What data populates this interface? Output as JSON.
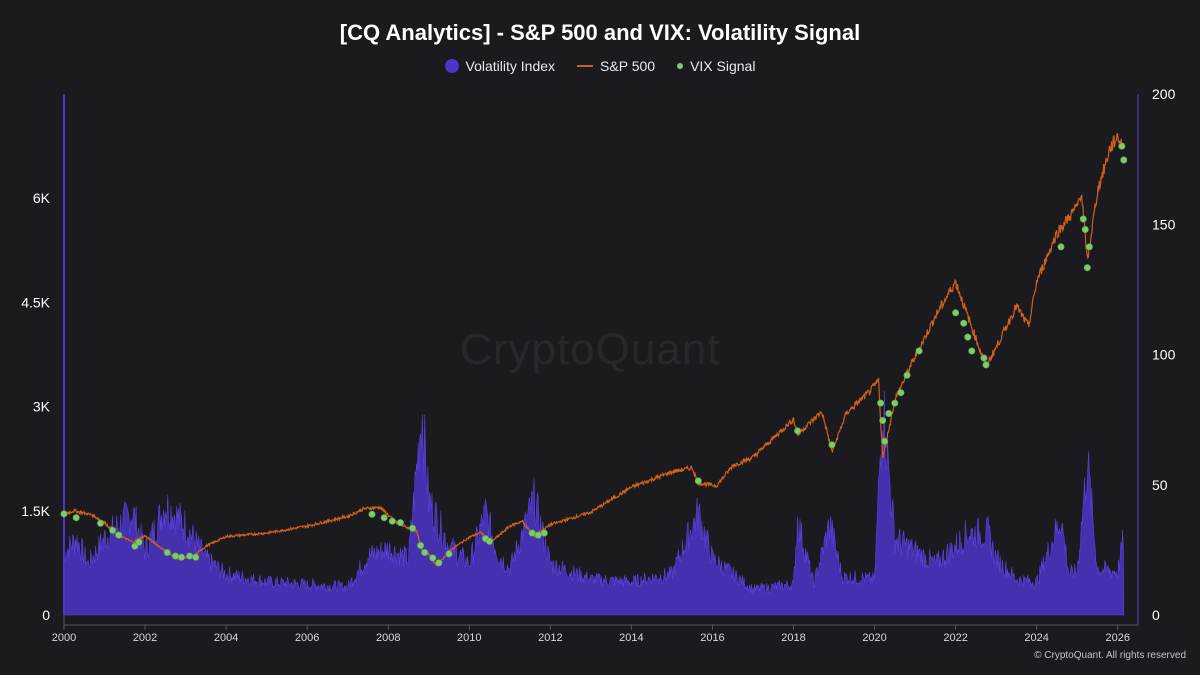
{
  "chart_data": {
    "type": "line",
    "title": "[CQ Analytics] - S&P 500 and VIX: Volatility Signal",
    "legend": [
      {
        "name": "Volatility Index",
        "kind": "area",
        "color": "#4c36c9"
      },
      {
        "name": "S&P 500",
        "kind": "line",
        "color": "#d1601c"
      },
      {
        "name": "VIX Signal",
        "kind": "scatter",
        "color": "#7ccc6a"
      }
    ],
    "x_range": [
      2000,
      2026.5
    ],
    "x_ticks": [
      "2000",
      "2002",
      "2004",
      "2006",
      "2008",
      "2010",
      "2012",
      "2014",
      "2016",
      "2018",
      "2020",
      "2022",
      "2024",
      "2026"
    ],
    "y_left": {
      "range": [
        0,
        7500
      ],
      "ticks": [
        0,
        1500,
        3000,
        4500,
        6000
      ],
      "tick_labels": [
        "0",
        "1.5K",
        "3K",
        "4.5K",
        "6K"
      ]
    },
    "y_right": {
      "range": [
        0,
        200
      ],
      "ticks": [
        0,
        50,
        100,
        150,
        200
      ],
      "tick_labels": [
        "0",
        "50",
        "100",
        "150",
        "200"
      ]
    },
    "series": [
      {
        "name": "S&P 500",
        "axis": "left",
        "points": [
          [
            2000.0,
            1455
          ],
          [
            2000.25,
            1500
          ],
          [
            2000.7,
            1440
          ],
          [
            2001.0,
            1330
          ],
          [
            2001.3,
            1160
          ],
          [
            2001.7,
            1050
          ],
          [
            2002.0,
            1140
          ],
          [
            2002.5,
            920
          ],
          [
            2002.8,
            800
          ],
          [
            2003.2,
            850
          ],
          [
            2003.5,
            990
          ],
          [
            2004.0,
            1130
          ],
          [
            2005.0,
            1180
          ],
          [
            2006.0,
            1280
          ],
          [
            2007.0,
            1420
          ],
          [
            2007.4,
            1530
          ],
          [
            2007.8,
            1550
          ],
          [
            2008.2,
            1330
          ],
          [
            2008.7,
            1200
          ],
          [
            2008.85,
            900
          ],
          [
            2009.0,
            880
          ],
          [
            2009.2,
            700
          ],
          [
            2009.5,
            920
          ],
          [
            2010.0,
            1120
          ],
          [
            2010.3,
            1190
          ],
          [
            2010.5,
            1030
          ],
          [
            2011.0,
            1280
          ],
          [
            2011.3,
            1350
          ],
          [
            2011.6,
            1130
          ],
          [
            2012.0,
            1300
          ],
          [
            2013.0,
            1480
          ],
          [
            2014.0,
            1840
          ],
          [
            2015.0,
            2060
          ],
          [
            2015.5,
            2120
          ],
          [
            2015.65,
            1900
          ],
          [
            2016.1,
            1860
          ],
          [
            2016.5,
            2150
          ],
          [
            2017.0,
            2270
          ],
          [
            2018.0,
            2820
          ],
          [
            2018.1,
            2600
          ],
          [
            2018.7,
            2930
          ],
          [
            2018.95,
            2350
          ],
          [
            2019.3,
            2900
          ],
          [
            2019.9,
            3230
          ],
          [
            2020.1,
            3380
          ],
          [
            2020.2,
            2240
          ],
          [
            2020.5,
            3100
          ],
          [
            2020.9,
            3600
          ],
          [
            2021.5,
            4300
          ],
          [
            2022.0,
            4800
          ],
          [
            2022.3,
            4300
          ],
          [
            2022.75,
            3580
          ],
          [
            2023.0,
            3850
          ],
          [
            2023.5,
            4450
          ],
          [
            2023.8,
            4150
          ],
          [
            2024.0,
            4800
          ],
          [
            2024.5,
            5500
          ],
          [
            2025.0,
            5880
          ],
          [
            2025.1,
            6100
          ],
          [
            2025.25,
            5100
          ],
          [
            2025.5,
            6100
          ],
          [
            2025.8,
            6700
          ],
          [
            2026.0,
            6900
          ],
          [
            2026.15,
            6700
          ]
        ]
      },
      {
        "name": "Volatility Index",
        "axis": "right",
        "points": [
          [
            2000.0,
            24
          ],
          [
            2000.3,
            30
          ],
          [
            2000.6,
            20
          ],
          [
            2001.0,
            30
          ],
          [
            2001.7,
            40
          ],
          [
            2002.0,
            25
          ],
          [
            2002.5,
            43
          ],
          [
            2002.7,
            40
          ],
          [
            2003.0,
            35
          ],
          [
            2003.5,
            22
          ],
          [
            2004.0,
            16
          ],
          [
            2005.0,
            13
          ],
          [
            2006.0,
            12
          ],
          [
            2007.0,
            11
          ],
          [
            2007.5,
            23
          ],
          [
            2008.0,
            26
          ],
          [
            2008.5,
            22
          ],
          [
            2008.83,
            80
          ],
          [
            2009.0,
            45
          ],
          [
            2009.5,
            27
          ],
          [
            2010.0,
            20
          ],
          [
            2010.4,
            40
          ],
          [
            2010.7,
            24
          ],
          [
            2011.0,
            18
          ],
          [
            2011.6,
            45
          ],
          [
            2012.0,
            20
          ],
          [
            2013.0,
            14
          ],
          [
            2014.0,
            13
          ],
          [
            2015.0,
            16
          ],
          [
            2015.65,
            40
          ],
          [
            2016.0,
            22
          ],
          [
            2017.0,
            10
          ],
          [
            2018.0,
            12
          ],
          [
            2018.1,
            37
          ],
          [
            2018.5,
            12
          ],
          [
            2018.9,
            36
          ],
          [
            2019.2,
            15
          ],
          [
            2020.0,
            14
          ],
          [
            2020.2,
            83
          ],
          [
            2020.5,
            30
          ],
          [
            2021.0,
            25
          ],
          [
            2021.5,
            20
          ],
          [
            2022.0,
            27
          ],
          [
            2022.3,
            32
          ],
          [
            2022.8,
            32
          ],
          [
            2023.0,
            22
          ],
          [
            2023.5,
            14
          ],
          [
            2024.0,
            13
          ],
          [
            2024.6,
            38
          ],
          [
            2024.8,
            16
          ],
          [
            2025.0,
            17
          ],
          [
            2025.25,
            60
          ],
          [
            2025.5,
            18
          ],
          [
            2026.0,
            17
          ],
          [
            2026.2,
            35
          ]
        ]
      },
      {
        "name": "VIX Signal",
        "axis": "left",
        "points": [
          [
            2000.0,
            1455
          ],
          [
            2000.3,
            1400
          ],
          [
            2000.9,
            1320
          ],
          [
            2001.2,
            1220
          ],
          [
            2001.35,
            1150
          ],
          [
            2001.75,
            990
          ],
          [
            2001.85,
            1050
          ],
          [
            2002.55,
            900
          ],
          [
            2002.75,
            850
          ],
          [
            2002.9,
            830
          ],
          [
            2003.1,
            850
          ],
          [
            2003.25,
            830
          ],
          [
            2007.6,
            1450
          ],
          [
            2007.9,
            1400
          ],
          [
            2008.1,
            1350
          ],
          [
            2008.3,
            1330
          ],
          [
            2008.6,
            1250
          ],
          [
            2008.8,
            1000
          ],
          [
            2008.9,
            900
          ],
          [
            2009.1,
            820
          ],
          [
            2009.25,
            750
          ],
          [
            2009.5,
            880
          ],
          [
            2010.4,
            1100
          ],
          [
            2010.5,
            1060
          ],
          [
            2011.55,
            1180
          ],
          [
            2011.7,
            1150
          ],
          [
            2011.85,
            1180
          ],
          [
            2015.65,
            1930
          ],
          [
            2018.1,
            2650
          ],
          [
            2018.95,
            2450
          ],
          [
            2020.15,
            3050
          ],
          [
            2020.2,
            2800
          ],
          [
            2020.25,
            2500
          ],
          [
            2020.35,
            2900
          ],
          [
            2020.5,
            3050
          ],
          [
            2020.65,
            3200
          ],
          [
            2020.8,
            3450
          ],
          [
            2021.1,
            3800
          ],
          [
            2022.0,
            4350
          ],
          [
            2022.2,
            4200
          ],
          [
            2022.3,
            4000
          ],
          [
            2022.4,
            3800
          ],
          [
            2022.7,
            3700
          ],
          [
            2022.75,
            3600
          ],
          [
            2024.6,
            5300
          ],
          [
            2025.15,
            5700
          ],
          [
            2025.2,
            5550
          ],
          [
            2025.25,
            5000
          ],
          [
            2025.3,
            5300
          ],
          [
            2026.1,
            6750
          ],
          [
            2026.15,
            6550
          ]
        ]
      }
    ]
  },
  "watermark": "CryptoQuant",
  "copyright": "© CryptoQuant. All rights reserved"
}
